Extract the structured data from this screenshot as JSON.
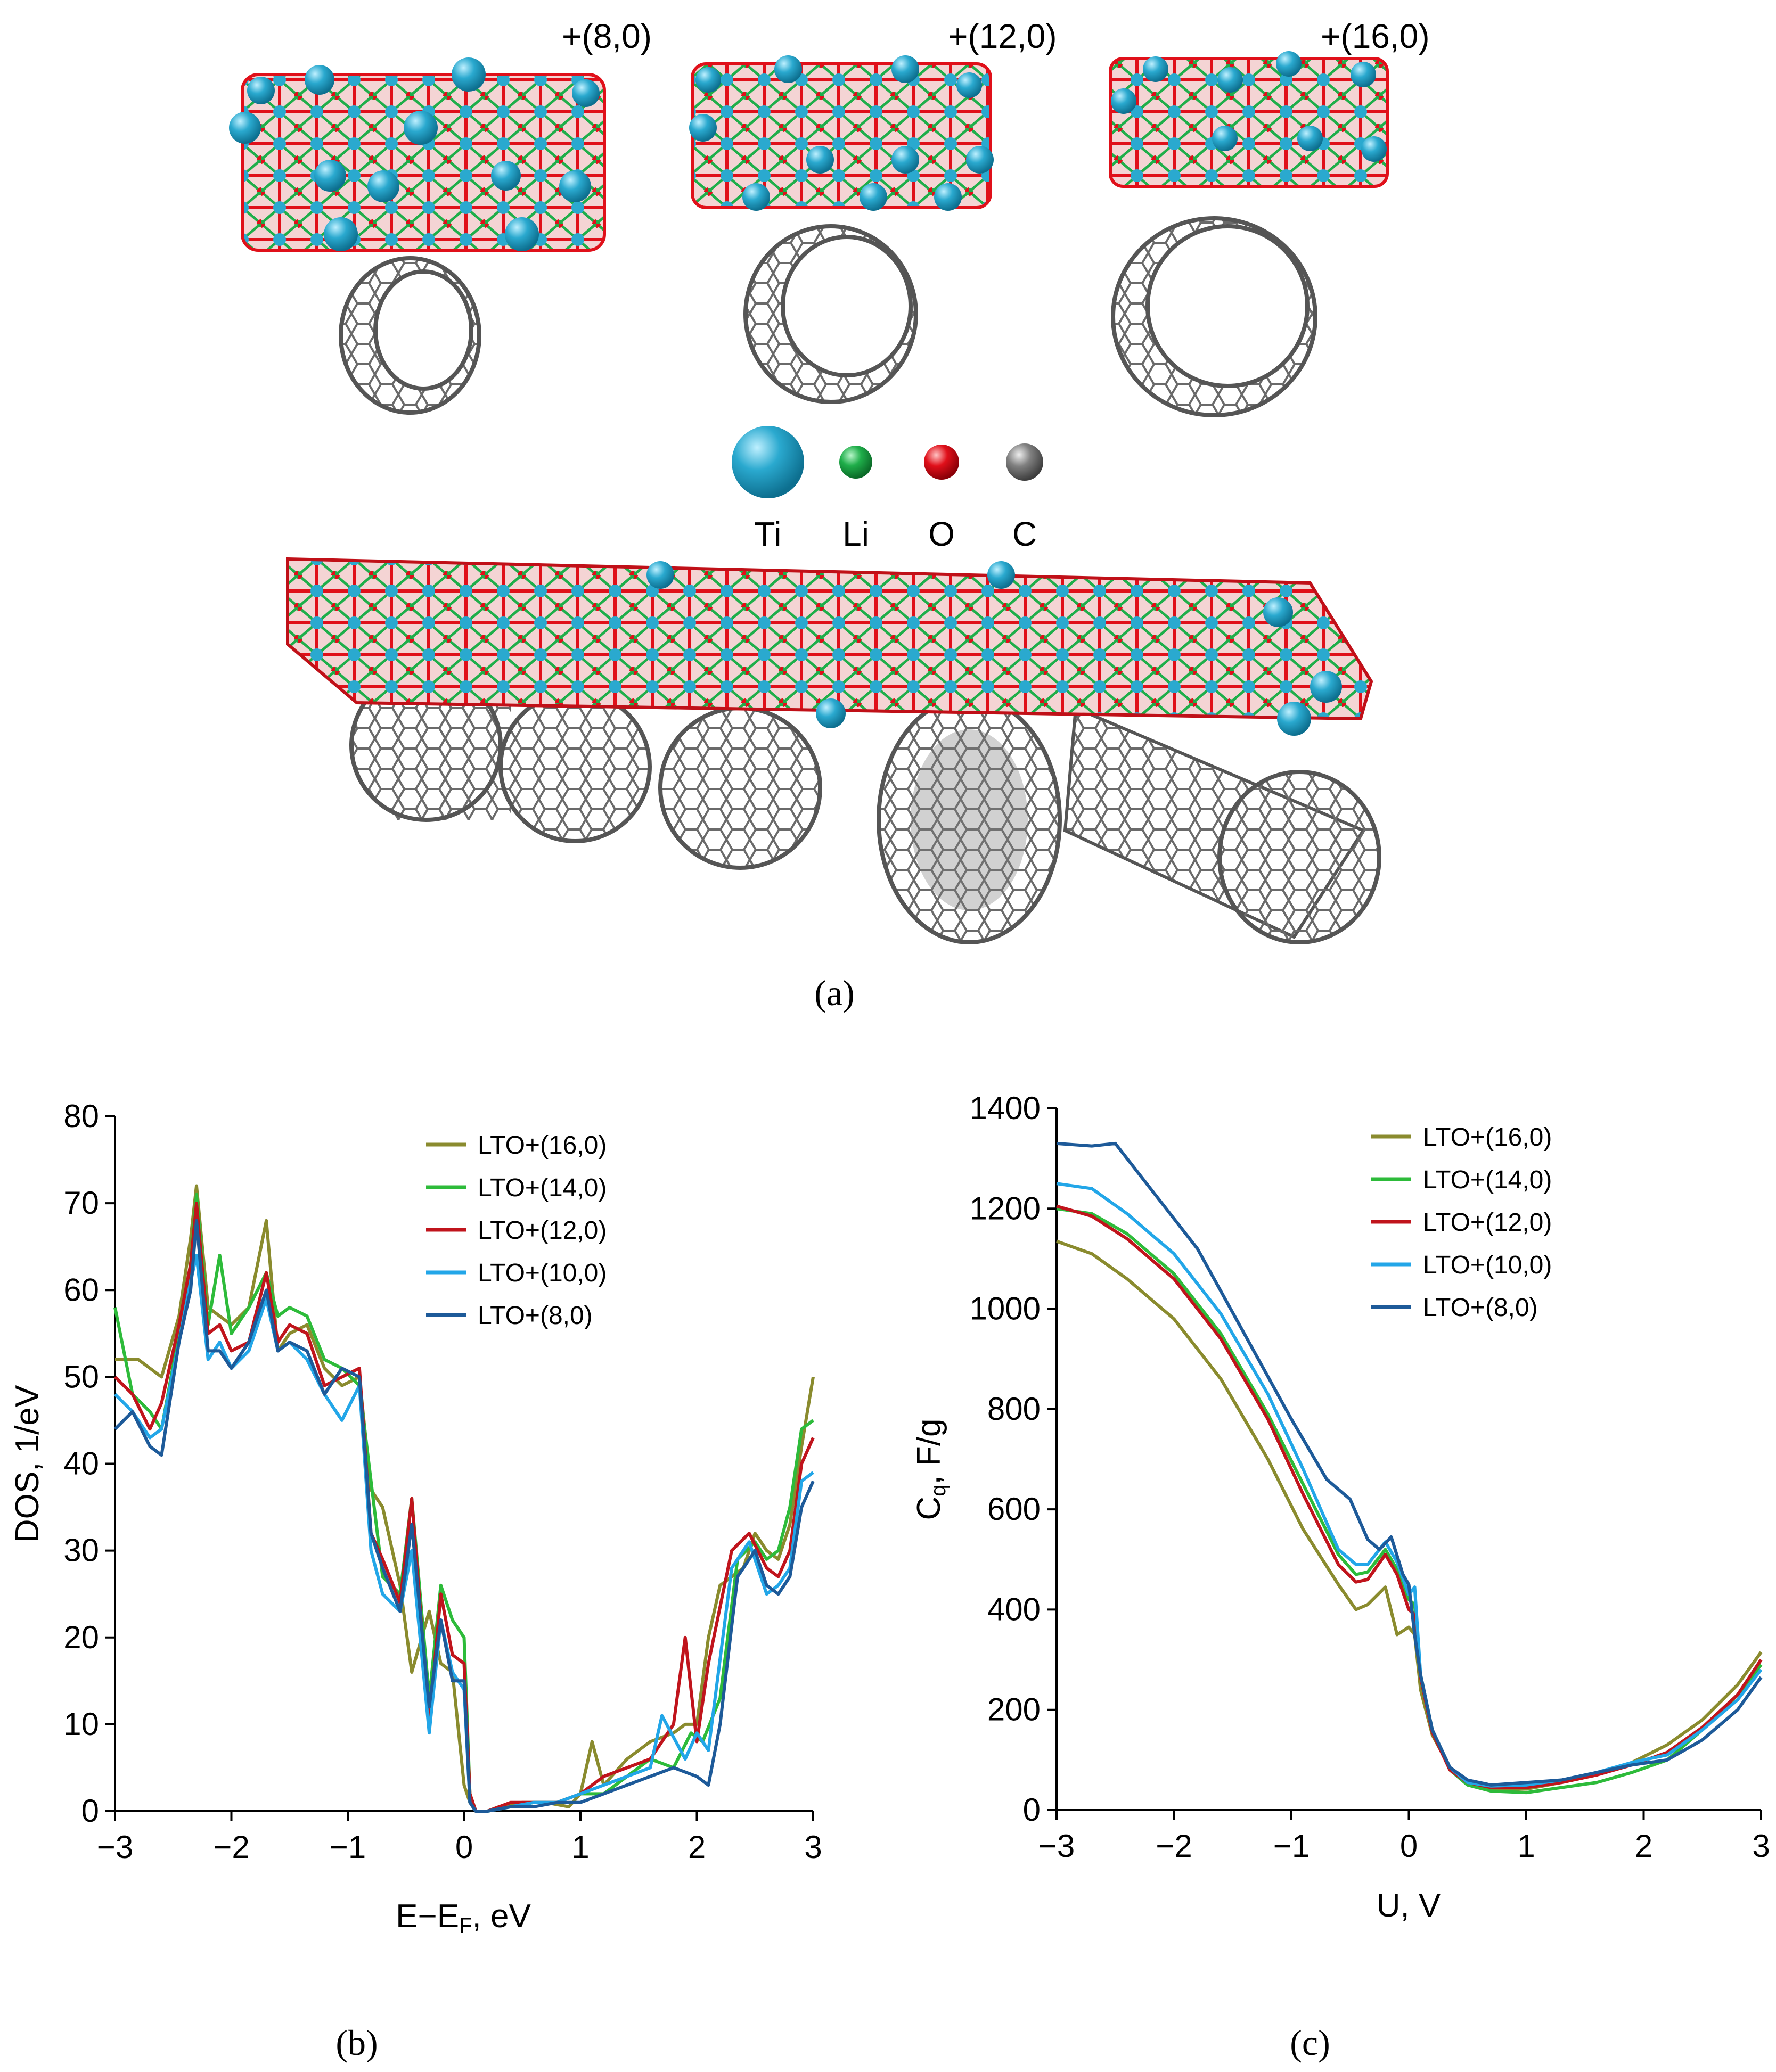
{
  "panel_a": {
    "label": "(a)",
    "tube_labels": [
      "+(8,0)",
      "+(12,0)",
      "+(16,0)"
    ],
    "legend": [
      {
        "symbol": "Ti",
        "color": "#2aa9cf"
      },
      {
        "symbol": "Li",
        "color": "#1fae4a"
      },
      {
        "symbol": "O",
        "color": "#e0101a"
      },
      {
        "symbol": "C",
        "color": "#808080"
      }
    ]
  },
  "panel_b": {
    "label": "(b)"
  },
  "panel_c": {
    "label": "(c)"
  },
  "chart_data": [
    {
      "id": "b",
      "type": "line",
      "xlabel": "E−E_F, eV",
      "ylabel": "DOS, 1/eV",
      "xlim": [
        -3,
        3
      ],
      "ylim": [
        0,
        80
      ],
      "xticks": [
        "−3",
        "−2",
        "−1",
        "0",
        "1",
        "2",
        "3"
      ],
      "xtick_values": [
        -3,
        -2,
        -1,
        0,
        1,
        2,
        3
      ],
      "yticks": [
        0,
        10,
        20,
        30,
        40,
        50,
        60,
        70,
        80
      ],
      "legend_position": "top-right",
      "series": [
        {
          "name": "LTO+(16,0)",
          "color": "#8a8b2e",
          "x": [
            -3.0,
            -2.8,
            -2.6,
            -2.45,
            -2.35,
            -2.3,
            -2.2,
            -2.1,
            -2.0,
            -1.85,
            -1.7,
            -1.6,
            -1.5,
            -1.35,
            -1.2,
            -1.05,
            -0.9,
            -0.8,
            -0.7,
            -0.55,
            -0.45,
            -0.3,
            -0.2,
            -0.1,
            0.0,
            0.05,
            0.1,
            0.2,
            0.3,
            0.5,
            0.7,
            0.9,
            1.0,
            1.1,
            1.2,
            1.4,
            1.6,
            1.8,
            1.9,
            2.0,
            2.1,
            2.2,
            2.3,
            2.4,
            2.5,
            2.6,
            2.7,
            2.8,
            2.9,
            3.0
          ],
          "y": [
            52,
            52,
            50,
            57,
            66,
            72,
            58,
            57,
            56,
            58,
            68,
            53,
            55,
            56,
            51,
            49,
            50,
            37,
            35,
            26,
            16,
            23,
            17,
            16,
            3,
            1,
            0,
            0,
            0.5,
            1,
            1,
            0.5,
            2,
            8,
            3,
            6,
            8,
            9,
            10,
            10,
            20,
            26,
            27,
            28,
            32,
            30,
            29,
            33,
            42,
            50
          ]
        },
        {
          "name": "LTO+(14,0)",
          "color": "#2dbb3a",
          "x": [
            -3.0,
            -2.85,
            -2.7,
            -2.6,
            -2.45,
            -2.35,
            -2.3,
            -2.2,
            -2.1,
            -2.0,
            -1.85,
            -1.7,
            -1.6,
            -1.5,
            -1.35,
            -1.2,
            -1.05,
            -0.9,
            -0.8,
            -0.7,
            -0.55,
            -0.45,
            -0.3,
            -0.2,
            -0.1,
            0.0,
            0.05,
            0.1,
            0.2,
            0.4,
            0.6,
            0.8,
            1.0,
            1.2,
            1.4,
            1.6,
            1.8,
            1.95,
            2.05,
            2.2,
            2.35,
            2.5,
            2.6,
            2.7,
            2.8,
            2.9,
            3.0
          ],
          "y": [
            58,
            48,
            46,
            44,
            55,
            63,
            71,
            56,
            64,
            55,
            58,
            62,
            57,
            58,
            57,
            52,
            51,
            49,
            38,
            27,
            25,
            36,
            13,
            26,
            22,
            20,
            2,
            0,
            0,
            0.5,
            1,
            1,
            2,
            2,
            4,
            6,
            5,
            9,
            8,
            13,
            29,
            31,
            29,
            30,
            35,
            44,
            45
          ]
        },
        {
          "name": "LTO+(12,0)",
          "color": "#c0141c",
          "x": [
            -3.0,
            -2.85,
            -2.7,
            -2.6,
            -2.45,
            -2.35,
            -2.3,
            -2.2,
            -2.1,
            -2.0,
            -1.85,
            -1.7,
            -1.6,
            -1.5,
            -1.35,
            -1.2,
            -1.05,
            -0.9,
            -0.8,
            -0.7,
            -0.55,
            -0.45,
            -0.3,
            -0.2,
            -0.1,
            0.0,
            0.05,
            0.1,
            0.2,
            0.4,
            0.6,
            0.8,
            1.0,
            1.2,
            1.4,
            1.6,
            1.8,
            1.9,
            2.0,
            2.1,
            2.3,
            2.45,
            2.6,
            2.7,
            2.8,
            2.9,
            3.0
          ],
          "y": [
            50,
            48,
            44,
            47,
            56,
            63,
            70,
            55,
            56,
            53,
            54,
            62,
            54,
            56,
            55,
            49,
            50,
            51,
            32,
            29,
            24,
            36,
            10,
            25,
            18,
            17,
            2,
            0,
            0,
            1,
            1,
            1,
            2,
            4,
            5,
            6,
            10,
            20,
            8,
            17,
            30,
            32,
            28,
            27,
            30,
            40,
            43
          ]
        },
        {
          "name": "LTO+(10,0)",
          "color": "#22a6e8",
          "x": [
            -3.0,
            -2.85,
            -2.7,
            -2.6,
            -2.45,
            -2.35,
            -2.3,
            -2.2,
            -2.1,
            -2.0,
            -1.85,
            -1.7,
            -1.6,
            -1.5,
            -1.35,
            -1.2,
            -1.05,
            -0.9,
            -0.8,
            -0.7,
            -0.55,
            -0.45,
            -0.3,
            -0.2,
            -0.1,
            0.0,
            0.05,
            0.1,
            0.2,
            0.4,
            0.6,
            0.8,
            1.0,
            1.2,
            1.4,
            1.6,
            1.7,
            1.9,
            2.0,
            2.1,
            2.3,
            2.45,
            2.6,
            2.7,
            2.8,
            2.9,
            3.0
          ],
          "y": [
            48,
            46,
            43,
            44,
            54,
            61,
            64,
            52,
            54,
            51,
            53,
            59,
            53,
            54,
            52,
            48,
            45,
            49,
            30,
            25,
            23,
            30,
            9,
            22,
            16,
            14,
            1,
            0,
            0,
            0.5,
            1,
            1,
            2,
            3,
            4,
            5,
            11,
            6,
            9,
            7,
            28,
            31,
            25,
            26,
            28,
            38,
            39
          ]
        },
        {
          "name": "LTO+(8,0)",
          "color": "#1d5a99",
          "x": [
            -3.0,
            -2.85,
            -2.7,
            -2.6,
            -2.45,
            -2.35,
            -2.3,
            -2.2,
            -2.1,
            -2.0,
            -1.85,
            -1.7,
            -1.6,
            -1.5,
            -1.35,
            -1.2,
            -1.05,
            -0.9,
            -0.8,
            -0.7,
            -0.55,
            -0.45,
            -0.3,
            -0.2,
            -0.1,
            0.0,
            0.05,
            0.1,
            0.2,
            0.4,
            0.6,
            0.8,
            1.0,
            1.2,
            1.4,
            1.6,
            1.8,
            2.0,
            2.1,
            2.2,
            2.35,
            2.5,
            2.6,
            2.7,
            2.8,
            2.9,
            3.0
          ],
          "y": [
            44,
            46,
            42,
            41,
            54,
            60,
            68,
            53,
            53,
            51,
            54,
            60,
            53,
            54,
            53,
            48,
            51,
            50,
            32,
            28,
            23,
            33,
            12,
            22,
            15,
            15,
            1,
            0,
            0,
            0.5,
            0.5,
            1,
            1,
            2,
            3,
            4,
            5,
            4,
            3,
            10,
            27,
            30,
            26,
            25,
            27,
            35,
            38
          ]
        }
      ]
    },
    {
      "id": "c",
      "type": "line",
      "xlabel": "U, V",
      "ylabel": "C_q, F/g",
      "xlim": [
        -3,
        3
      ],
      "ylim": [
        0,
        1400
      ],
      "xticks": [
        "−3",
        "−2",
        "−1",
        "0",
        "1",
        "2",
        "3"
      ],
      "xtick_values": [
        -3,
        -2,
        -1,
        0,
        1,
        2,
        3
      ],
      "yticks": [
        0,
        200,
        400,
        600,
        800,
        1000,
        1200,
        1400
      ],
      "legend_position": "top-right",
      "series": [
        {
          "name": "LTO+(16,0)",
          "color": "#8a8b2e",
          "x": [
            -3.0,
            -2.7,
            -2.4,
            -2.0,
            -1.6,
            -1.2,
            -0.9,
            -0.6,
            -0.45,
            -0.35,
            -0.2,
            -0.1,
            0.0,
            0.05,
            0.1,
            0.2,
            0.35,
            0.5,
            0.7,
            1.0,
            1.3,
            1.6,
            1.9,
            2.2,
            2.5,
            2.8,
            3.0
          ],
          "y": [
            1135,
            1110,
            1060,
            980,
            860,
            700,
            560,
            450,
            400,
            410,
            445,
            350,
            365,
            350,
            240,
            150,
            85,
            55,
            42,
            42,
            55,
            70,
            95,
            130,
            180,
            250,
            315
          ]
        },
        {
          "name": "LTO+(14,0)",
          "color": "#2dbb3a",
          "x": [
            -3.0,
            -2.7,
            -2.4,
            -2.0,
            -1.6,
            -1.2,
            -0.9,
            -0.6,
            -0.45,
            -0.35,
            -0.2,
            -0.1,
            0.0,
            0.05,
            0.1,
            0.2,
            0.35,
            0.5,
            0.7,
            1.0,
            1.3,
            1.6,
            1.9,
            2.2,
            2.5,
            2.8,
            3.0
          ],
          "y": [
            1200,
            1190,
            1150,
            1070,
            950,
            790,
            650,
            510,
            470,
            475,
            520,
            480,
            420,
            410,
            270,
            160,
            80,
            50,
            38,
            35,
            45,
            55,
            75,
            100,
            160,
            230,
            290
          ]
        },
        {
          "name": "LTO+(12,0)",
          "color": "#c0141c",
          "x": [
            -3.0,
            -2.7,
            -2.4,
            -2.0,
            -1.6,
            -1.2,
            -0.9,
            -0.6,
            -0.45,
            -0.35,
            -0.2,
            -0.1,
            0.0,
            0.05,
            0.1,
            0.2,
            0.35,
            0.5,
            0.7,
            1.0,
            1.3,
            1.6,
            1.9,
            2.2,
            2.5,
            2.8,
            3.0
          ],
          "y": [
            1205,
            1185,
            1140,
            1060,
            940,
            780,
            630,
            490,
            455,
            460,
            510,
            470,
            400,
            390,
            265,
            155,
            80,
            55,
            45,
            45,
            55,
            70,
            90,
            115,
            165,
            230,
            300
          ]
        },
        {
          "name": "LTO+(10,0)",
          "color": "#22a6e8",
          "x": [
            -3.0,
            -2.7,
            -2.4,
            -2.0,
            -1.6,
            -1.2,
            -0.9,
            -0.6,
            -0.45,
            -0.35,
            -0.2,
            -0.1,
            0.0,
            0.05,
            0.1,
            0.2,
            0.35,
            0.5,
            0.7,
            1.0,
            1.3,
            1.6,
            1.9,
            2.2,
            2.5,
            2.8,
            3.0
          ],
          "y": [
            1250,
            1240,
            1190,
            1110,
            990,
            830,
            680,
            520,
            490,
            490,
            535,
            495,
            430,
            445,
            270,
            160,
            85,
            55,
            48,
            50,
            60,
            75,
            95,
            110,
            160,
            220,
            280
          ]
        },
        {
          "name": "LTO+(8,0)",
          "color": "#1d5a99",
          "x": [
            -3.0,
            -2.7,
            -2.5,
            -2.2,
            -1.8,
            -1.4,
            -1.0,
            -0.7,
            -0.5,
            -0.35,
            -0.25,
            -0.15,
            -0.05,
            0.0,
            0.05,
            0.1,
            0.2,
            0.35,
            0.5,
            0.7,
            1.0,
            1.3,
            1.6,
            1.9,
            2.2,
            2.5,
            2.8,
            3.0
          ],
          "y": [
            1330,
            1325,
            1330,
            1240,
            1120,
            950,
            780,
            660,
            620,
            540,
            520,
            545,
            470,
            450,
            350,
            270,
            160,
            85,
            60,
            50,
            55,
            60,
            75,
            90,
            100,
            140,
            200,
            265
          ]
        }
      ]
    }
  ]
}
